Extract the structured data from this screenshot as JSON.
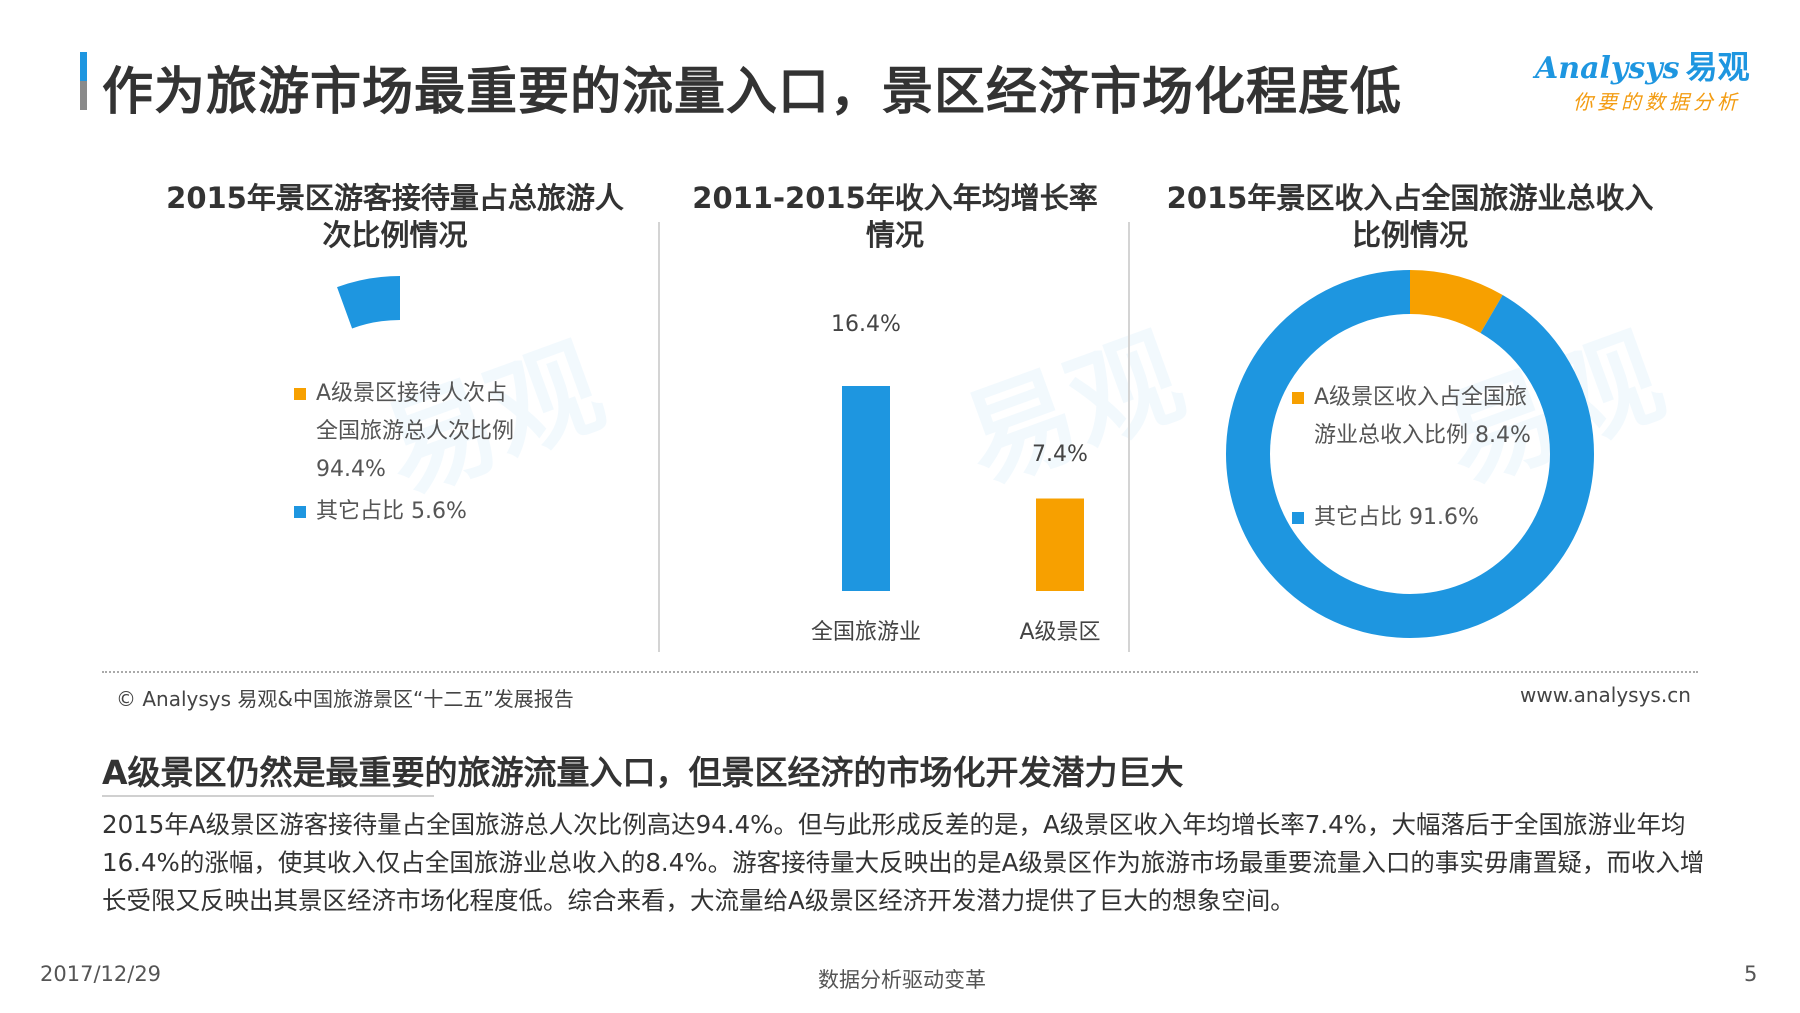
{
  "header": {
    "title": "作为旅游市场最重要的流量入口，景区经济市场化程度低"
  },
  "logo": {
    "brand_en": "Analysys",
    "brand_cn": "易观",
    "tagline": "你要的数据分析"
  },
  "colors": {
    "orange": "#f7a000",
    "blue": "#1e96e0",
    "accent": "#1e96e0"
  },
  "chart_data": [
    {
      "type": "pie",
      "title_line1": "2015年景区游客接待量占总旅游人",
      "title_line2": "次比例情况",
      "legend": [
        {
          "line1": "A级景区接待人次占",
          "line2": "全国旅游总人次比例",
          "line3": "94.4%",
          "value": 94.4,
          "color": "#f7a000"
        },
        {
          "line1": "其它占比 5.6%",
          "value": 5.6,
          "color": "#1e96e0"
        }
      ]
    },
    {
      "type": "bar",
      "title_line1": "2011-2015年收入年均增长率",
      "title_line2": "情况",
      "categories": [
        "全国旅游业",
        "A级景区"
      ],
      "values": [
        16.4,
        7.4
      ],
      "value_labels": [
        "16.4%",
        "7.4%"
      ],
      "colors": [
        "#1e96e0",
        "#f7a000"
      ],
      "ylim": [
        0,
        20
      ]
    },
    {
      "type": "pie",
      "title_line1": "2015年景区收入占全国旅游业总收入",
      "title_line2": "比例情况",
      "legend": [
        {
          "line1": "A级景区收入占全国旅",
          "line2": "游业总收入比例 8.4%",
          "value": 8.4,
          "color": "#f7a000"
        },
        {
          "line1": "其它占比 91.6%",
          "value": 91.6,
          "color": "#1e96e0"
        }
      ]
    }
  ],
  "source": {
    "text": "© Analysys 易观&中国旅游景区“十二五”发展报告",
    "website": "www.analysys.cn"
  },
  "summary": {
    "title": "A级景区仍然是最重要的旅游流量入口，但景区经济的市场化开发潜力巨大",
    "body": "2015年A级景区游客接待量占全国旅游总人次比例高达94.4%。但与此形成反差的是，A级景区收入年均增长率7.4%，大幅落后于全国旅游业年均16.4%的涨幅，使其收入仅占全国旅游业总收入的8.4%。游客接待量大反映出的是A级景区作为旅游市场最重要流量入口的事实毋庸置疑，而收入增长受限又反映出其景区经济市场化程度低。综合来看，大流量给A级景区经济开发潜力提供了巨大的想象空间。"
  },
  "footer": {
    "date": "2017/12/29",
    "slogan": "数据分析驱动变革",
    "page": "5"
  }
}
